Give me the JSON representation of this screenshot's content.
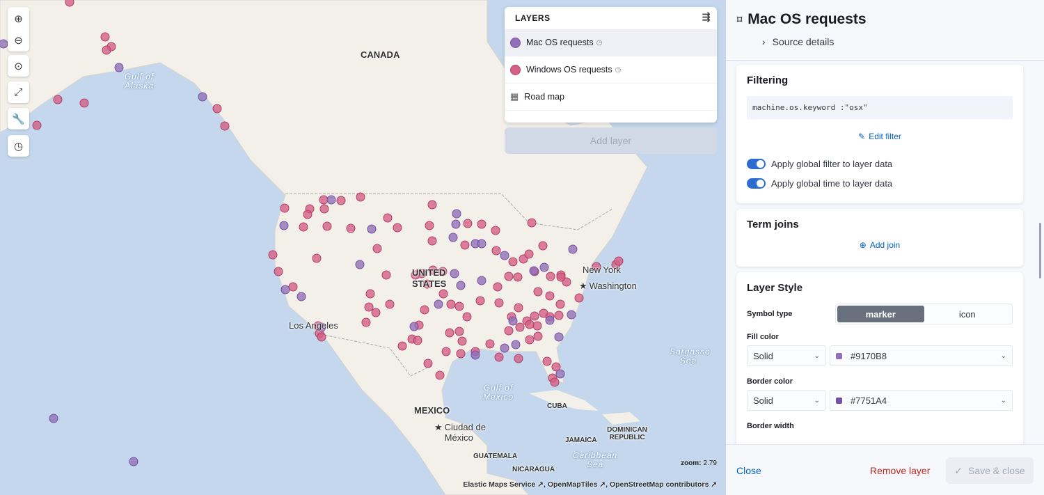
{
  "map": {
    "labels": {
      "canada": "CANADA",
      "usa": "UNITED STATES",
      "mexico": "MEXICO",
      "cuba": "CUBA",
      "guatemala": "GUATEMALA",
      "nicaragua": "NICARAGUA",
      "jamaica": "JAMAICA",
      "dominican": "DOMINICAN REPUBLIC",
      "newyork": "New York",
      "washington": "Washington",
      "losangeles": "Los Angeles",
      "ciudad": "Ciudad de México",
      "gulf_alaska": "Gulf of Alaska",
      "gulf_mexico": "Gulf of Mexico",
      "sargasso": "Sargasso Sea",
      "caribbean": "Caribbean Sea"
    },
    "zoom_label": "zoom:",
    "zoom_value": "2.79",
    "attribution": "Elastic Maps Service ↗, OpenMapTiles ↗, OpenStreetMap contributors ↗",
    "tools": [
      "zoom-in",
      "zoom-out",
      "set-view",
      "fit-to-data",
      "tools",
      "timeslider"
    ]
  },
  "layers": {
    "title": "LAYERS",
    "items": [
      {
        "label": "Mac OS requests",
        "color": "#9170B8",
        "icon": "circle",
        "time": true
      },
      {
        "label": "Windows OS requests",
        "color": "#D36086",
        "icon": "circle",
        "time": true
      },
      {
        "label": "Road map",
        "icon": "grid",
        "time": false
      }
    ],
    "add_layer": "Add layer"
  },
  "panel": {
    "title": "Mac OS requests",
    "source_details": "Source details",
    "filtering": {
      "title": "Filtering",
      "query": "machine.os.keyword :\"osx\"",
      "edit": "Edit filter",
      "global_filter": "Apply global filter to layer data",
      "global_time": "Apply global time to layer data",
      "global_filter_on": true,
      "global_time_on": true
    },
    "joins": {
      "title": "Term joins",
      "add": "Add join"
    },
    "style": {
      "title": "Layer Style",
      "symbol_label": "Symbol type",
      "symbol_options": [
        "marker",
        "icon"
      ],
      "symbol_selected": "marker",
      "fill_label": "Fill color",
      "fill_mode": "Solid",
      "fill_color": "#9170B8",
      "border_label": "Border color",
      "border_mode": "Solid",
      "border_color": "#7751A4",
      "border_width_label": "Border width"
    },
    "footer": {
      "close": "Close",
      "remove": "Remove layer",
      "save": "Save & close"
    }
  }
}
